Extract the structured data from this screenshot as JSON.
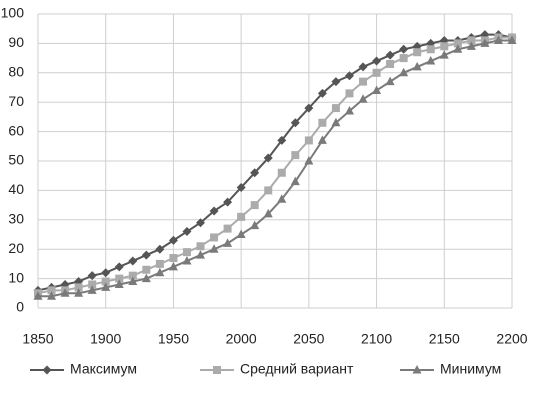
{
  "chart_data": {
    "type": "line",
    "x": [
      1850,
      1860,
      1870,
      1880,
      1890,
      1900,
      1910,
      1920,
      1930,
      1940,
      1950,
      1960,
      1970,
      1980,
      1990,
      2000,
      2010,
      2020,
      2030,
      2040,
      2050,
      2060,
      2070,
      2080,
      2090,
      2100,
      2110,
      2120,
      2130,
      2140,
      2150,
      2160,
      2170,
      2180,
      2190,
      2200
    ],
    "series": [
      {
        "name": "Максимум",
        "color": "#555555",
        "marker": "diamond",
        "values": [
          6,
          7,
          8,
          9,
          11,
          12,
          14,
          16,
          18,
          20,
          23,
          26,
          29,
          33,
          36,
          41,
          46,
          51,
          57,
          63,
          68,
          73,
          77,
          79,
          82,
          84,
          86,
          88,
          89,
          90,
          91,
          91,
          92,
          93,
          93,
          92
        ]
      },
      {
        "name": "Средний вариант",
        "color": "#ababab",
        "marker": "square",
        "values": [
          5,
          6,
          6,
          7,
          8,
          9,
          10,
          11,
          13,
          15,
          17,
          19,
          21,
          24,
          27,
          31,
          35,
          40,
          46,
          52,
          57,
          63,
          68,
          73,
          77,
          80,
          83,
          85,
          87,
          88,
          89,
          90,
          91,
          91,
          92,
          92
        ]
      },
      {
        "name": "Минимум",
        "color": "#7a7a7a",
        "marker": "triangle",
        "values": [
          4,
          4,
          5,
          5,
          6,
          7,
          8,
          9,
          10,
          12,
          14,
          16,
          18,
          20,
          22,
          25,
          28,
          32,
          37,
          43,
          50,
          57,
          63,
          67,
          71,
          74,
          77,
          80,
          82,
          84,
          86,
          88,
          89,
          90,
          91,
          91
        ]
      }
    ],
    "xlim": [
      1850,
      2200
    ],
    "xticks": [
      1850,
      1900,
      1950,
      2000,
      2050,
      2100,
      2150,
      2200
    ],
    "ylim": [
      0,
      100
    ],
    "yticks": [
      0,
      10,
      20,
      30,
      40,
      50,
      60,
      70,
      80,
      90,
      100
    ],
    "grid": true,
    "legend": "bottom"
  }
}
